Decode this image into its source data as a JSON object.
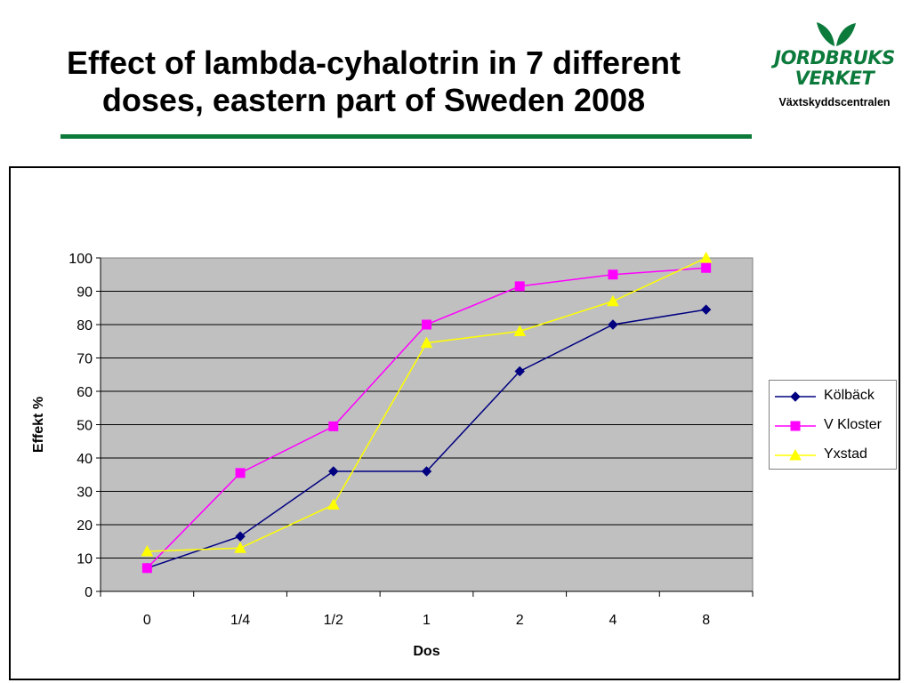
{
  "slide": {
    "title_line1": "Effect of lambda-cyhalotrin in 7 different",
    "title_line2": "doses, eastern part of Sweden 2008",
    "accent_color": "#0b7a3b"
  },
  "logo": {
    "line1": "JORDBRUKS",
    "line2": "VERKET",
    "subtitle": "Växtskyddscentralen",
    "icon": "leaves-icon"
  },
  "chart_data": {
    "type": "line",
    "categories": [
      "0",
      "1/4",
      "1/2",
      "1",
      "2",
      "4",
      "8"
    ],
    "xlabel": "Dos",
    "ylabel": "Effekt %",
    "ylim": [
      0,
      100
    ],
    "yticks": [
      0,
      10,
      20,
      30,
      40,
      50,
      60,
      70,
      80,
      90,
      100
    ],
    "grid": true,
    "plot_background": "#c0c0c0",
    "legend_position": "right",
    "series": [
      {
        "name": "Kölbäck",
        "color": "#000080",
        "marker": "diamond",
        "values": [
          7,
          16.5,
          36,
          36,
          66,
          80,
          84.5
        ]
      },
      {
        "name": "V Kloster",
        "color": "#ff00ff",
        "marker": "square",
        "values": [
          7,
          35.5,
          49.5,
          80,
          91.5,
          95,
          97
        ]
      },
      {
        "name": "Yxstad",
        "color": "#ffff00",
        "marker": "triangle",
        "values": [
          12,
          13,
          26,
          74.5,
          78,
          87,
          100
        ]
      }
    ]
  }
}
